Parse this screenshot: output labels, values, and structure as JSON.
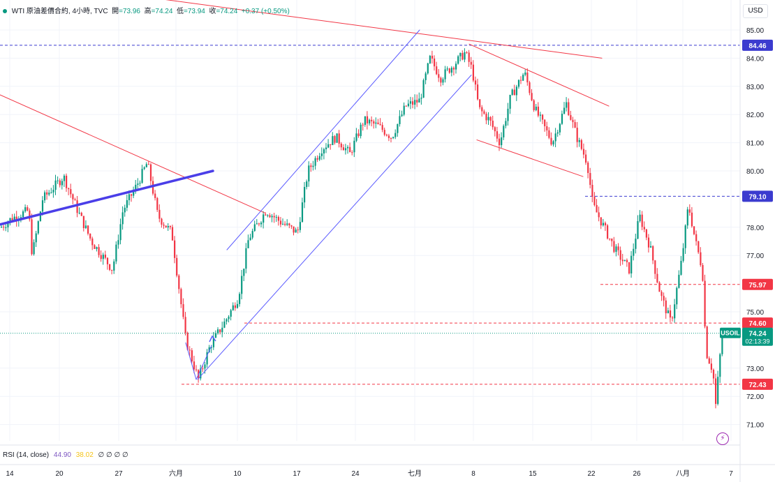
{
  "header": {
    "symbol": "WTI 原油差價合約, 4小時, TVC",
    "open_label": "開",
    "open": "=73.96",
    "high_label": "高",
    "high": "=74.24",
    "low_label": "低",
    "low": "=73.94",
    "close_label": "收",
    "close": "=74.24",
    "change": "+0.37 (+0.50%)"
  },
  "currency_button": "USD",
  "rsi": {
    "label": "RSI (14, close)",
    "value1": "44.90",
    "value2": "38.02",
    "placeholders": "∅ ∅ ∅ ∅"
  },
  "colors": {
    "up": "#089981",
    "down": "#f23645",
    "trend": "#f23645",
    "channel": "#5b5bff",
    "thick_trend": "#4a3ee8",
    "level_blue": "#3b3bcf",
    "level_red": "#f23645",
    "last": "#089981"
  },
  "chart_data": {
    "type": "candlestick",
    "title": "WTI 原油差價合約, 4小時, TVC",
    "ylabel": "USD",
    "ylim": [
      70.6,
      85.6
    ],
    "y_ticks": [
      71.0,
      72.0,
      73.0,
      75.0,
      77.0,
      78.0,
      80.0,
      81.0,
      82.0,
      83.0,
      84.0,
      85.0
    ],
    "x_ticks": [
      "14",
      "20",
      "27",
      "六月",
      "10",
      "17",
      "24",
      "七月",
      "8",
      "15",
      "22",
      "26",
      "八月",
      "7"
    ],
    "price_path": [
      [
        0,
        78.0
      ],
      [
        15,
        78.3
      ],
      [
        40,
        78.6
      ],
      [
        45,
        77.0
      ],
      [
        60,
        79.0
      ],
      [
        90,
        79.8
      ],
      [
        110,
        78.6
      ],
      [
        130,
        77.5
      ],
      [
        160,
        76.5
      ],
      [
        175,
        78.6
      ],
      [
        195,
        79.5
      ],
      [
        210,
        80.3
      ],
      [
        225,
        78.4
      ],
      [
        245,
        77.8
      ],
      [
        265,
        74.0
      ],
      [
        283,
        72.6
      ],
      [
        300,
        73.8
      ],
      [
        320,
        74.6
      ],
      [
        340,
        75.5
      ],
      [
        355,
        77.6
      ],
      [
        380,
        78.6
      ],
      [
        400,
        78.2
      ],
      [
        425,
        77.8
      ],
      [
        440,
        80.0
      ],
      [
        460,
        80.8
      ],
      [
        480,
        81.2
      ],
      [
        500,
        80.6
      ],
      [
        520,
        81.8
      ],
      [
        540,
        81.6
      ],
      [
        560,
        81.2
      ],
      [
        580,
        82.3
      ],
      [
        600,
        82.5
      ],
      [
        615,
        84.0
      ],
      [
        630,
        83.3
      ],
      [
        650,
        83.8
      ],
      [
        665,
        84.2
      ],
      [
        675,
        83.6
      ],
      [
        685,
        82.2
      ],
      [
        700,
        81.8
      ],
      [
        715,
        81.0
      ],
      [
        730,
        82.6
      ],
      [
        750,
        83.5
      ],
      [
        765,
        82.2
      ],
      [
        790,
        81.0
      ],
      [
        810,
        82.4
      ],
      [
        825,
        81.2
      ],
      [
        840,
        80.3
      ],
      [
        848,
        78.8
      ],
      [
        860,
        78.2
      ],
      [
        880,
        77.2
      ],
      [
        900,
        76.5
      ],
      [
        915,
        78.4
      ],
      [
        930,
        77.3
      ],
      [
        945,
        75.6
      ],
      [
        960,
        74.6
      ],
      [
        975,
        76.8
      ],
      [
        985,
        78.8
      ],
      [
        995,
        77.5
      ],
      [
        1005,
        76.5
      ],
      [
        1010,
        73.6
      ],
      [
        1020,
        72.9
      ],
      [
        1024,
        71.7
      ],
      [
        1030,
        73.4
      ],
      [
        1034,
        74.24
      ]
    ],
    "price_labels": [
      {
        "value": 84.46,
        "text": "84.46",
        "style": "blue"
      },
      {
        "value": 79.1,
        "text": "79.10",
        "style": "blue"
      },
      {
        "value": 75.97,
        "text": "75.97",
        "style": "red"
      },
      {
        "value": 74.6,
        "text": "74.60",
        "style": "red"
      },
      {
        "value": 74.24,
        "text": "74.24",
        "style": "last",
        "symbol": "USOIL",
        "countdown": "02:13:39"
      },
      {
        "value": 72.43,
        "text": "72.43",
        "style": "red"
      }
    ],
    "horizontal_levels": [
      {
        "value": 84.46,
        "from": 0,
        "style": "blue"
      },
      {
        "value": 79.1,
        "from": 838,
        "style": "blue"
      },
      {
        "value": 75.97,
        "from": 860,
        "style": "red"
      },
      {
        "value": 74.6,
        "from": 350,
        "style": "red"
      },
      {
        "value": 72.43,
        "from": 260,
        "style": "red"
      },
      {
        "value": 74.24,
        "from": 0,
        "style": "last"
      }
    ],
    "trendlines": [
      {
        "x1": 200,
        "y1": 86.2,
        "x2": 862,
        "y2": 84.0,
        "style": "trend"
      },
      {
        "x1": 0,
        "y1": 82.7,
        "x2": 380,
        "y2": 78.5,
        "style": "trend"
      },
      {
        "x1": 672,
        "y1": 84.5,
        "x2": 872,
        "y2": 82.3,
        "style": "trend"
      },
      {
        "x1": 683,
        "y1": 81.1,
        "x2": 835,
        "y2": 79.8,
        "style": "trend"
      },
      {
        "x1": 0,
        "y1": 78.1,
        "x2": 305,
        "y2": 80.0,
        "style": "thick"
      },
      {
        "x1": 325,
        "y1": 77.2,
        "x2": 601,
        "y2": 85.0,
        "style": "channel"
      },
      {
        "x1": 283,
        "y1": 72.6,
        "x2": 675,
        "y2": 83.4,
        "style": "channel"
      },
      {
        "x1": 266,
        "y1": 73.9,
        "x2": 281,
        "y2": 72.6,
        "style": "channel"
      },
      {
        "x1": 281,
        "y1": 72.6,
        "x2": 303,
        "y2": 73.8,
        "style": "channel"
      }
    ]
  }
}
